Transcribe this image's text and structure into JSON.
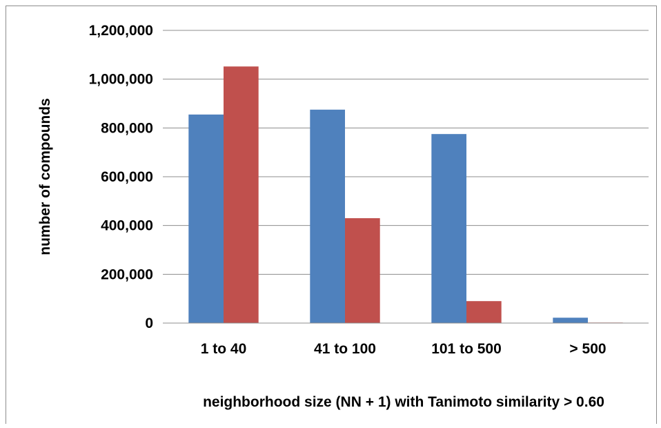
{
  "chart_data": {
    "type": "bar",
    "title": "",
    "xlabel": "neighborhood size (NN + 1) with Tanimoto similarity > 0.60",
    "ylabel": "number of compounds",
    "categories": [
      "1 to 40",
      "41 to 100",
      "101 to 500",
      "> 500"
    ],
    "series": [
      {
        "color": "#4F81BD",
        "values": [
          855000,
          875000,
          775000,
          22000
        ]
      },
      {
        "color": "#C0504D",
        "values": [
          1052000,
          430000,
          90000,
          2000
        ]
      }
    ],
    "ylim": [
      0,
      1200000
    ],
    "yticks": [
      0,
      200000,
      400000,
      600000,
      800000,
      1000000,
      1200000
    ],
    "ytick_labels": [
      "0",
      "200,000",
      "400,000",
      "600,000",
      "800,000",
      "1,000,000",
      "1,200,000"
    ],
    "grid": true,
    "legend": "none"
  }
}
